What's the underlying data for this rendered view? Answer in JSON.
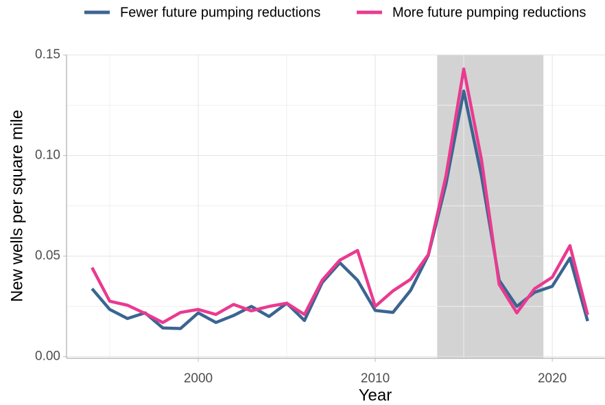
{
  "chart_data": {
    "type": "line",
    "x_label": "Year",
    "y_label": "New wells per square mile",
    "x": [
      1994,
      1995,
      1996,
      1997,
      1998,
      1999,
      2000,
      2001,
      2002,
      2003,
      2004,
      2005,
      2006,
      2007,
      2008,
      2009,
      2010,
      2011,
      2012,
      2013,
      2014,
      2015,
      2016,
      2017,
      2018,
      2019,
      2020,
      2021,
      2022
    ],
    "series": [
      {
        "name": "Fewer future pumping reductions",
        "color": "#3b6591",
        "values": [
          0.0338,
          0.0235,
          0.019,
          0.0218,
          0.0143,
          0.014,
          0.0218,
          0.017,
          0.0205,
          0.025,
          0.02,
          0.0266,
          0.018,
          0.0368,
          0.0467,
          0.038,
          0.023,
          0.022,
          0.033,
          0.0505,
          0.086,
          0.132,
          0.09,
          0.038,
          0.025,
          0.032,
          0.035,
          0.049,
          0.0177
        ]
      },
      {
        "name": "More future pumping reductions",
        "color": "#ea3a8f",
        "values": [
          0.0443,
          0.0276,
          0.0256,
          0.0215,
          0.017,
          0.022,
          0.0235,
          0.021,
          0.026,
          0.0228,
          0.025,
          0.0266,
          0.021,
          0.038,
          0.048,
          0.0528,
          0.025,
          0.0327,
          0.0385,
          0.0508,
          0.09,
          0.143,
          0.098,
          0.036,
          0.0218,
          0.0338,
          0.0395,
          0.0552,
          0.0208
        ]
      }
    ],
    "shaded_region": [
      2013.5,
      2019.5
    ],
    "shade_color": "#d3d3d3",
    "xlim": [
      1992.56,
      2022.98
    ],
    "xticks": [
      2000,
      2010,
      2020
    ],
    "ylim": [
      -0.0008,
      0.15
    ],
    "yticks": [
      {
        "value": 0,
        "label": "0.00"
      },
      0.05,
      {
        "value": 0.1,
        "label": "0.10"
      },
      0.15
    ],
    "grid": true,
    "legend": "top"
  }
}
